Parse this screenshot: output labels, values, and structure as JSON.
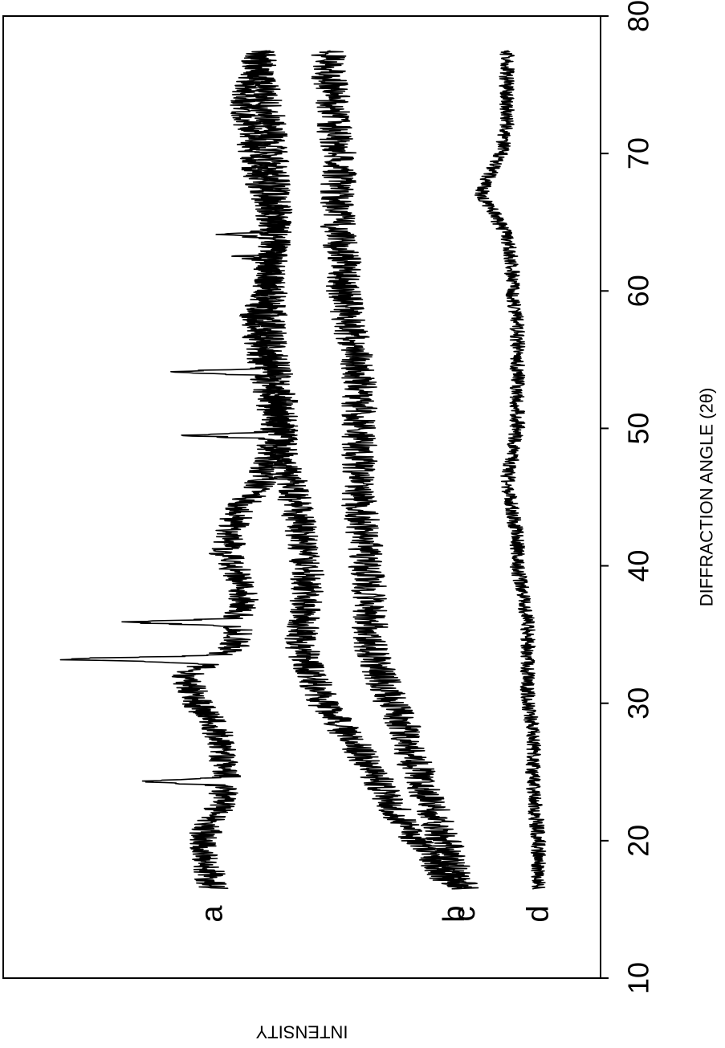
{
  "chart_data": {
    "type": "line",
    "orientation": "rotated-90-clockwise",
    "xlabel": "DIFFRACTION ANGLE (2θ)",
    "ylabel": "INTENSITY",
    "xlim": [
      10,
      80
    ],
    "xticks": [
      "10",
      "20",
      "30",
      "40",
      "50",
      "60",
      "70",
      "80"
    ],
    "grid": false,
    "legend": "none",
    "x_range_of_traces": [
      16.5,
      77.5
    ],
    "series": [
      {
        "name": "a",
        "baseline": [
          [
            16.5,
            72
          ],
          [
            20,
            74
          ],
          [
            24,
            69
          ],
          [
            28,
            71
          ],
          [
            30,
            75
          ],
          [
            32,
            77
          ],
          [
            34,
            68
          ],
          [
            36,
            67
          ],
          [
            38,
            66
          ],
          [
            40,
            68
          ],
          [
            42,
            69
          ],
          [
            44,
            67
          ],
          [
            46,
            63
          ],
          [
            48,
            61
          ],
          [
            50,
            60
          ],
          [
            52,
            61
          ],
          [
            54,
            62
          ],
          [
            56,
            63
          ],
          [
            58,
            64
          ],
          [
            60,
            62
          ],
          [
            62,
            61
          ],
          [
            64,
            60
          ],
          [
            66,
            61
          ],
          [
            68,
            63
          ],
          [
            70,
            64
          ],
          [
            72,
            65
          ],
          [
            74,
            66
          ],
          [
            76,
            64
          ],
          [
            77.5,
            63
          ]
        ],
        "peaks": [
          [
            24.3,
            84
          ],
          [
            33.2,
            100
          ],
          [
            35.9,
            87
          ],
          [
            41.0,
            71
          ],
          [
            49.5,
            76
          ],
          [
            54.1,
            79
          ],
          [
            62.5,
            66
          ],
          [
            64.1,
            69
          ]
        ],
        "noise": 3.0
      },
      {
        "name": "b",
        "baseline": [
          [
            16.5,
            26
          ],
          [
            18,
            29
          ],
          [
            20,
            33
          ],
          [
            22,
            37
          ],
          [
            24,
            40
          ],
          [
            26,
            43
          ],
          [
            28,
            47
          ],
          [
            30,
            51
          ],
          [
            32,
            53
          ],
          [
            34,
            55
          ],
          [
            36,
            55
          ],
          [
            38,
            54
          ],
          [
            40,
            54
          ],
          [
            42,
            55
          ],
          [
            44,
            56
          ],
          [
            46,
            57
          ],
          [
            48,
            59
          ],
          [
            50,
            59
          ],
          [
            52,
            59
          ],
          [
            54,
            60
          ],
          [
            56,
            61
          ],
          [
            58,
            61
          ],
          [
            60,
            61
          ],
          [
            62,
            61
          ],
          [
            64,
            60
          ],
          [
            66,
            60
          ],
          [
            68,
            60
          ],
          [
            70,
            61
          ],
          [
            72,
            61
          ],
          [
            74,
            62
          ],
          [
            76,
            63
          ],
          [
            77.5,
            63
          ]
        ],
        "noise": 3.2
      },
      {
        "name": "c",
        "baseline": [
          [
            16.5,
            24
          ],
          [
            18,
            26
          ],
          [
            20,
            28
          ],
          [
            22,
            30
          ],
          [
            24,
            32
          ],
          [
            26,
            34
          ],
          [
            28,
            35
          ],
          [
            30,
            38
          ],
          [
            32,
            40
          ],
          [
            34,
            42
          ],
          [
            36,
            42
          ],
          [
            38,
            42
          ],
          [
            40,
            43
          ],
          [
            42,
            43
          ],
          [
            44,
            44
          ],
          [
            46,
            44
          ],
          [
            48,
            44
          ],
          [
            50,
            44
          ],
          [
            52,
            44
          ],
          [
            54,
            44
          ],
          [
            56,
            45
          ],
          [
            58,
            46
          ],
          [
            60,
            47
          ],
          [
            62,
            47
          ],
          [
            64,
            48
          ],
          [
            66,
            48
          ],
          [
            68,
            48
          ],
          [
            70,
            48
          ],
          [
            72,
            49
          ],
          [
            74,
            49
          ],
          [
            76,
            50
          ],
          [
            77.5,
            50
          ]
        ],
        "noise": 3.4
      },
      {
        "name": "d",
        "baseline": [
          [
            16.5,
            10
          ],
          [
            20,
            10
          ],
          [
            24,
            11
          ],
          [
            28,
            11
          ],
          [
            30,
            12
          ],
          [
            32,
            12
          ],
          [
            34,
            12
          ],
          [
            36,
            12
          ],
          [
            38,
            13
          ],
          [
            40,
            14
          ],
          [
            42,
            14
          ],
          [
            44,
            15
          ],
          [
            46,
            16
          ],
          [
            48,
            15
          ],
          [
            50,
            14
          ],
          [
            52,
            14
          ],
          [
            54,
            14
          ],
          [
            56,
            14
          ],
          [
            58,
            14
          ],
          [
            60,
            15
          ],
          [
            62,
            15
          ],
          [
            64,
            16
          ],
          [
            66,
            19
          ],
          [
            67,
            21
          ],
          [
            68,
            20
          ],
          [
            70,
            17
          ],
          [
            72,
            16
          ],
          [
            74,
            16
          ],
          [
            76,
            16
          ],
          [
            77.5,
            16
          ]
        ],
        "noise": 1.4
      }
    ]
  }
}
